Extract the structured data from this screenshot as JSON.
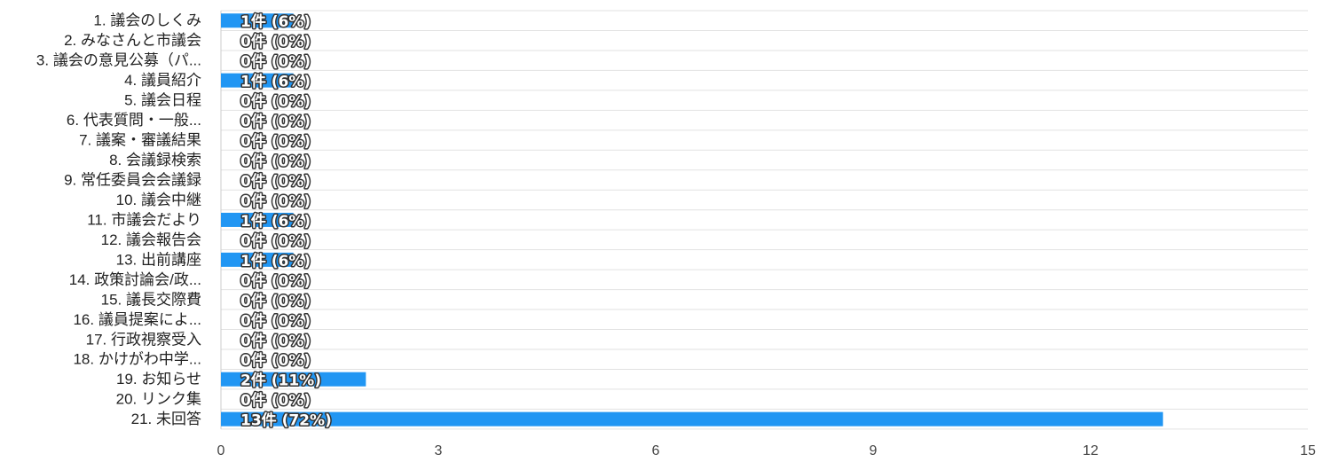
{
  "chart_data": {
    "type": "bar",
    "orientation": "horizontal",
    "categories": [
      "1. 議会のしくみ",
      "2. みなさんと市議会",
      "3. 議会の意見公募（パ...",
      "4. 議員紹介",
      "5. 議会日程",
      "6. 代表質問・一般...",
      "7. 議案・審議結果",
      "8. 会議録検索",
      "9. 常任委員会会議録",
      "10. 議会中継",
      "11. 市議会だより",
      "12. 議会報告会",
      "13. 出前講座",
      "14. 政策討論会/政...",
      "15. 議長交際費",
      "16. 議員提案によ...",
      "17. 行政視察受入",
      "18. かけがわ中学...",
      "19. お知らせ",
      "20. リンク集",
      "21. 未回答"
    ],
    "values": [
      1,
      0,
      0,
      1,
      0,
      0,
      0,
      0,
      0,
      0,
      1,
      0,
      1,
      0,
      0,
      0,
      0,
      0,
      2,
      0,
      13
    ],
    "data_labels": [
      "1件 (6%)",
      "0件 (0%)",
      "0件 (0%)",
      "1件 (6%)",
      "0件 (0%)",
      "0件 (0%)",
      "0件 (0%)",
      "0件 (0%)",
      "0件 (0%)",
      "0件 (0%)",
      "1件 (6%)",
      "0件 (0%)",
      "1件 (6%)",
      "0件 (0%)",
      "0件 (0%)",
      "0件 (0%)",
      "0件 (0%)",
      "0件 (0%)",
      "2件 (11%)",
      "0件 (0%)",
      "13件 (72%)"
    ],
    "xticks": [
      0,
      3,
      6,
      9,
      12,
      15
    ],
    "xlim": [
      0,
      15
    ],
    "grid": true,
    "legend": "none",
    "title": "",
    "xlabel": "",
    "ylabel": "",
    "colors": {
      "bar": "#2196f3"
    }
  }
}
